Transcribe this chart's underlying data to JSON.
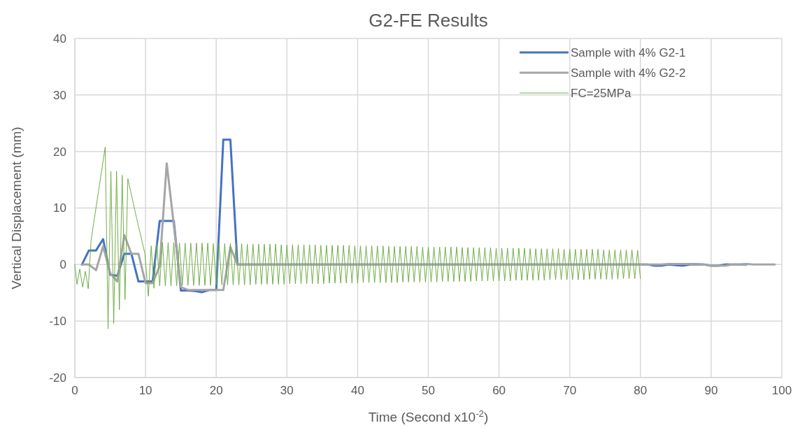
{
  "chart_data": {
    "type": "line",
    "title": "G2-FE Results",
    "xlabel": "Time  (Second x10$^{-2}$)",
    "ylabel": "Vertical Displacement (mm)",
    "xlim": [
      0,
      100
    ],
    "xticks": [
      0,
      10,
      20,
      30,
      40,
      50,
      60,
      70,
      80,
      90,
      100
    ],
    "ylim": [
      -20,
      40
    ],
    "yticks": [
      -20,
      -10,
      0,
      10,
      20,
      30,
      40
    ],
    "grid": true,
    "legend": "top right",
    "marker": "none",
    "line_style": "solid",
    "series": [
      {
        "name": "Sample with 4% G2-1",
        "color": "#4472c4",
        "x": [
          1,
          2,
          3,
          4,
          5,
          6,
          7,
          8,
          9,
          10,
          11,
          12,
          13,
          14,
          15,
          16,
          17,
          18,
          19,
          20,
          21,
          22,
          23,
          81,
          82,
          83,
          84,
          85,
          86,
          87,
          88,
          89,
          90,
          91,
          92,
          93,
          94,
          95
        ],
        "values": [
          0,
          2.5,
          2.5,
          4.5,
          -1.8,
          -2,
          1.9,
          1.9,
          -3,
          -3,
          -3,
          7.7,
          7.7,
          7.7,
          -4.6,
          -4.6,
          -4.7,
          -4.9,
          -4.5,
          -4.5,
          22.1,
          22.1,
          0,
          0,
          -0.2,
          -0.2,
          0,
          -0.1,
          -0.2,
          0,
          0,
          0,
          -0.2,
          -0.2,
          0,
          0,
          0,
          0
        ]
      },
      {
        "name": "Sample with 4% G2-2",
        "color": "#a5a5a5",
        "x": [
          1,
          2,
          3,
          4,
          5,
          6,
          7,
          8,
          9,
          10,
          11,
          12,
          13,
          14,
          15,
          16,
          17,
          18,
          19,
          20,
          21,
          22,
          23,
          24,
          25,
          26,
          27,
          28,
          29,
          30,
          31,
          32,
          33,
          34,
          35,
          36,
          37,
          38,
          39,
          40,
          41,
          42,
          43,
          44,
          45,
          46,
          47,
          48,
          49,
          50,
          51,
          52,
          53,
          54,
          55,
          56,
          57,
          58,
          59,
          60,
          61,
          62,
          63,
          64,
          65,
          66,
          67,
          68,
          69,
          70,
          71,
          72,
          73,
          74,
          75,
          76,
          77,
          78,
          79,
          80,
          81,
          82,
          83,
          84,
          85,
          86,
          87,
          88,
          89,
          90,
          91,
          92,
          93,
          94,
          95,
          96,
          97,
          98,
          99
        ],
        "values": [
          0,
          0,
          -1,
          3.2,
          -1.5,
          -3,
          5.2,
          1.9,
          1.9,
          -3.3,
          -3.3,
          -0.3,
          17.9,
          7,
          -4,
          -4.5,
          -4.5,
          -4.5,
          -4.5,
          -4.5,
          -4.5,
          3.1,
          0,
          0,
          0,
          0,
          0,
          0,
          0,
          0,
          0,
          0,
          0,
          0,
          0,
          0,
          0,
          0,
          0,
          0,
          0,
          0,
          0,
          0,
          0,
          0,
          0,
          0,
          0,
          0,
          0,
          0,
          0,
          0,
          0,
          0,
          0,
          0,
          0,
          0,
          0,
          0,
          0,
          0,
          0,
          0,
          0,
          0,
          0,
          0,
          0,
          0,
          0,
          0,
          0,
          0,
          0,
          0,
          0,
          0,
          0,
          0,
          0,
          0.1,
          0.1,
          0.1,
          0.1,
          0.1,
          0,
          -0.2,
          -0.2,
          -0.2,
          0,
          0,
          0.1,
          0,
          0,
          0,
          0
        ]
      },
      {
        "name": "FC=25MPa",
        "color": "#70ad47",
        "x": [
          0,
          0.3,
          0.7,
          1.1,
          1.5,
          1.9,
          2.3,
          4.3,
          4.7,
          5.1,
          5.5,
          5.9,
          6.3,
          6.7,
          7.1,
          7.5,
          8.7,
          9.9,
          10.4,
          10.8,
          11.2,
          11.6,
          12,
          12.4,
          12.8,
          13.2,
          13.6,
          14,
          14.4,
          14.8,
          15.2,
          15.6,
          16,
          16.4,
          16.8,
          17.2,
          17.6,
          18,
          18.4,
          18.8,
          19.2,
          19.6,
          20,
          20.4,
          20.8,
          21.2,
          21.6,
          22,
          22.4,
          22.8,
          23.2,
          23.6,
          24,
          24.4,
          24.8,
          25.2,
          25.6,
          26,
          26.4,
          26.8,
          27.2,
          27.6,
          28,
          28.4,
          28.8,
          29.2,
          29.6,
          30,
          30.4,
          30.8,
          31.2,
          31.6,
          32,
          32.4,
          32.8,
          33.2,
          33.6,
          34,
          34.4,
          34.8,
          35.2,
          35.6,
          36,
          36.4,
          36.8,
          37.2,
          37.6,
          38,
          38.4,
          38.8,
          39.2,
          39.6,
          40,
          40.4,
          40.8,
          41.2,
          41.6,
          42,
          42.4,
          42.8,
          43.2,
          43.6,
          44,
          44.4,
          44.8,
          45.2,
          45.6,
          46,
          46.4,
          46.8,
          47.2,
          47.6,
          48,
          48.4,
          48.8,
          49.2,
          49.6,
          50,
          50.4,
          50.8,
          51.2,
          51.6,
          52,
          52.4,
          52.8,
          53.2,
          53.6,
          54,
          54.4,
          54.8,
          55.2,
          55.6,
          56,
          56.4,
          56.8,
          57.2,
          57.6,
          58,
          58.4,
          58.8,
          59.2,
          59.6,
          60,
          60.4,
          60.8,
          61.2,
          61.6,
          62,
          62.4,
          62.8,
          63.2,
          63.6,
          64,
          64.4,
          64.8,
          65.2,
          65.6,
          66,
          66.4,
          66.8,
          67.2,
          67.6,
          68,
          68.4,
          68.8,
          69.2,
          69.6,
          70,
          70.4,
          70.8,
          71.2,
          71.6,
          72,
          72.4,
          72.8,
          73.2,
          73.6,
          74,
          74.4,
          74.8,
          75.2,
          75.6,
          76,
          76.4,
          76.8,
          77.2,
          77.6,
          78,
          78.4,
          78.8,
          79.2,
          79.6,
          80
        ],
        "values": [
          0,
          -3.5,
          -0.8,
          -4,
          -1.2,
          -4.3,
          4.3,
          20.8,
          -11.4,
          16.5,
          -10.4,
          16.5,
          -8,
          15.8,
          -6.2,
          15.2,
          8.4,
          2,
          -5.6,
          3.3,
          -4.2,
          3.9,
          -3.8,
          3.9,
          -3.8,
          3.9,
          -3.8,
          3.9,
          -3.8,
          3.8,
          -3.7,
          3.8,
          -3.7,
          3.8,
          -3.7,
          3.8,
          -3.7,
          3.8,
          -3.7,
          3.8,
          -3.7,
          3.7,
          -3.6,
          3.7,
          -3.6,
          3.7,
          -3.6,
          3.7,
          -3.6,
          3.7,
          -3.6,
          3.7,
          -3.6,
          3.6,
          -3.6,
          3.6,
          -3.5,
          3.6,
          -3.5,
          3.6,
          -3.5,
          3.6,
          -3.5,
          3.6,
          -3.5,
          3.5,
          -3.5,
          3.5,
          -3.4,
          3.5,
          -3.4,
          3.5,
          -3.4,
          3.5,
          -3.4,
          3.5,
          -3.4,
          3.5,
          -3.4,
          3.4,
          -3.4,
          3.4,
          -3.3,
          3.4,
          -3.3,
          3.4,
          -3.3,
          3.4,
          -3.3,
          3.4,
          -3.3,
          3.3,
          -3.3,
          3.3,
          -3.2,
          3.3,
          -3.2,
          3.3,
          -3.2,
          3.3,
          -3.2,
          3.3,
          -3.2,
          3.2,
          -3.2,
          3.2,
          -3.2,
          3.2,
          -3.1,
          3.2,
          -3.1,
          3.2,
          -3.1,
          3.2,
          -3.1,
          3.1,
          -3.1,
          3.1,
          -3.1,
          3.1,
          -3.1,
          3.1,
          -3,
          3.1,
          -3,
          3.1,
          -3,
          3.1,
          -3,
          3,
          -3,
          3,
          -3,
          3,
          -2.9,
          3,
          -2.9,
          3,
          -2.9,
          3,
          -2.9,
          2.9,
          -2.9,
          2.9,
          -2.9,
          2.9,
          -2.9,
          2.9,
          -2.8,
          2.9,
          -2.8,
          2.9,
          -2.8,
          2.8,
          -2.8,
          2.8,
          -2.8,
          2.8,
          -2.8,
          2.8,
          -2.7,
          2.8,
          -2.7,
          2.8,
          -2.7,
          2.7,
          -2.7,
          2.7,
          -2.7,
          2.7,
          -2.7,
          2.7,
          -2.7,
          2.7,
          -2.6,
          2.7,
          -2.6,
          2.7,
          -2.6,
          2.6,
          -2.6,
          2.6,
          -2.6,
          2.6,
          -2.6,
          2.6,
          -2.5,
          2.6,
          -2.5,
          2.6,
          -2.5,
          2.5,
          -2.5
        ]
      }
    ]
  }
}
